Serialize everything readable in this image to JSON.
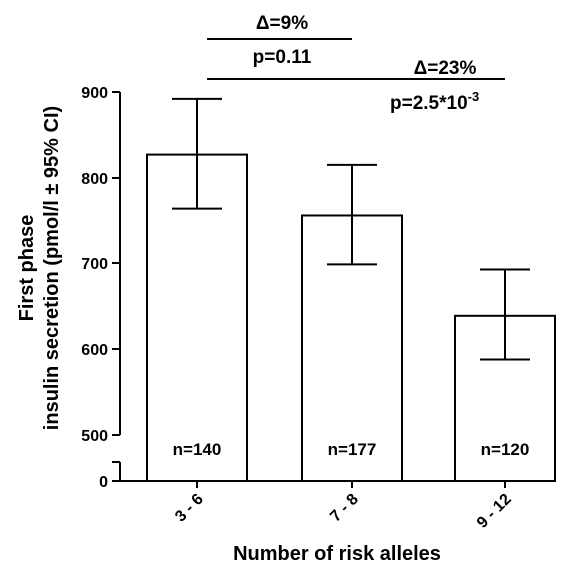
{
  "chart_data": {
    "type": "bar",
    "title": "",
    "xlabel": "Number of risk alleles",
    "ylabel_line1": "First phase",
    "ylabel_line2": "insulin secretion (pmol/l ± 95% CI)",
    "categories": [
      "3 - 6",
      "7 - 8",
      "9 - 12"
    ],
    "values": [
      827,
      756,
      639
    ],
    "ci_lower": [
      764,
      699,
      588
    ],
    "ci_upper": [
      892,
      815,
      693
    ],
    "n_labels": [
      "n=140",
      "n=177",
      "n=120"
    ],
    "ylim": [
      500,
      900
    ],
    "axis_break": true,
    "yticks": [
      "500",
      "600",
      "700",
      "800",
      "900"
    ],
    "ybottom_tick": "0",
    "comparisons": [
      {
        "from": "3 - 6",
        "to": "7 - 8",
        "delta": "Δ=9%",
        "p": "p=0.11"
      },
      {
        "from": "3 - 6",
        "to": "9 - 12",
        "delta": "Δ=23%",
        "p_prefix": "p=2.5*10",
        "p_exponent": "-3"
      }
    ]
  }
}
